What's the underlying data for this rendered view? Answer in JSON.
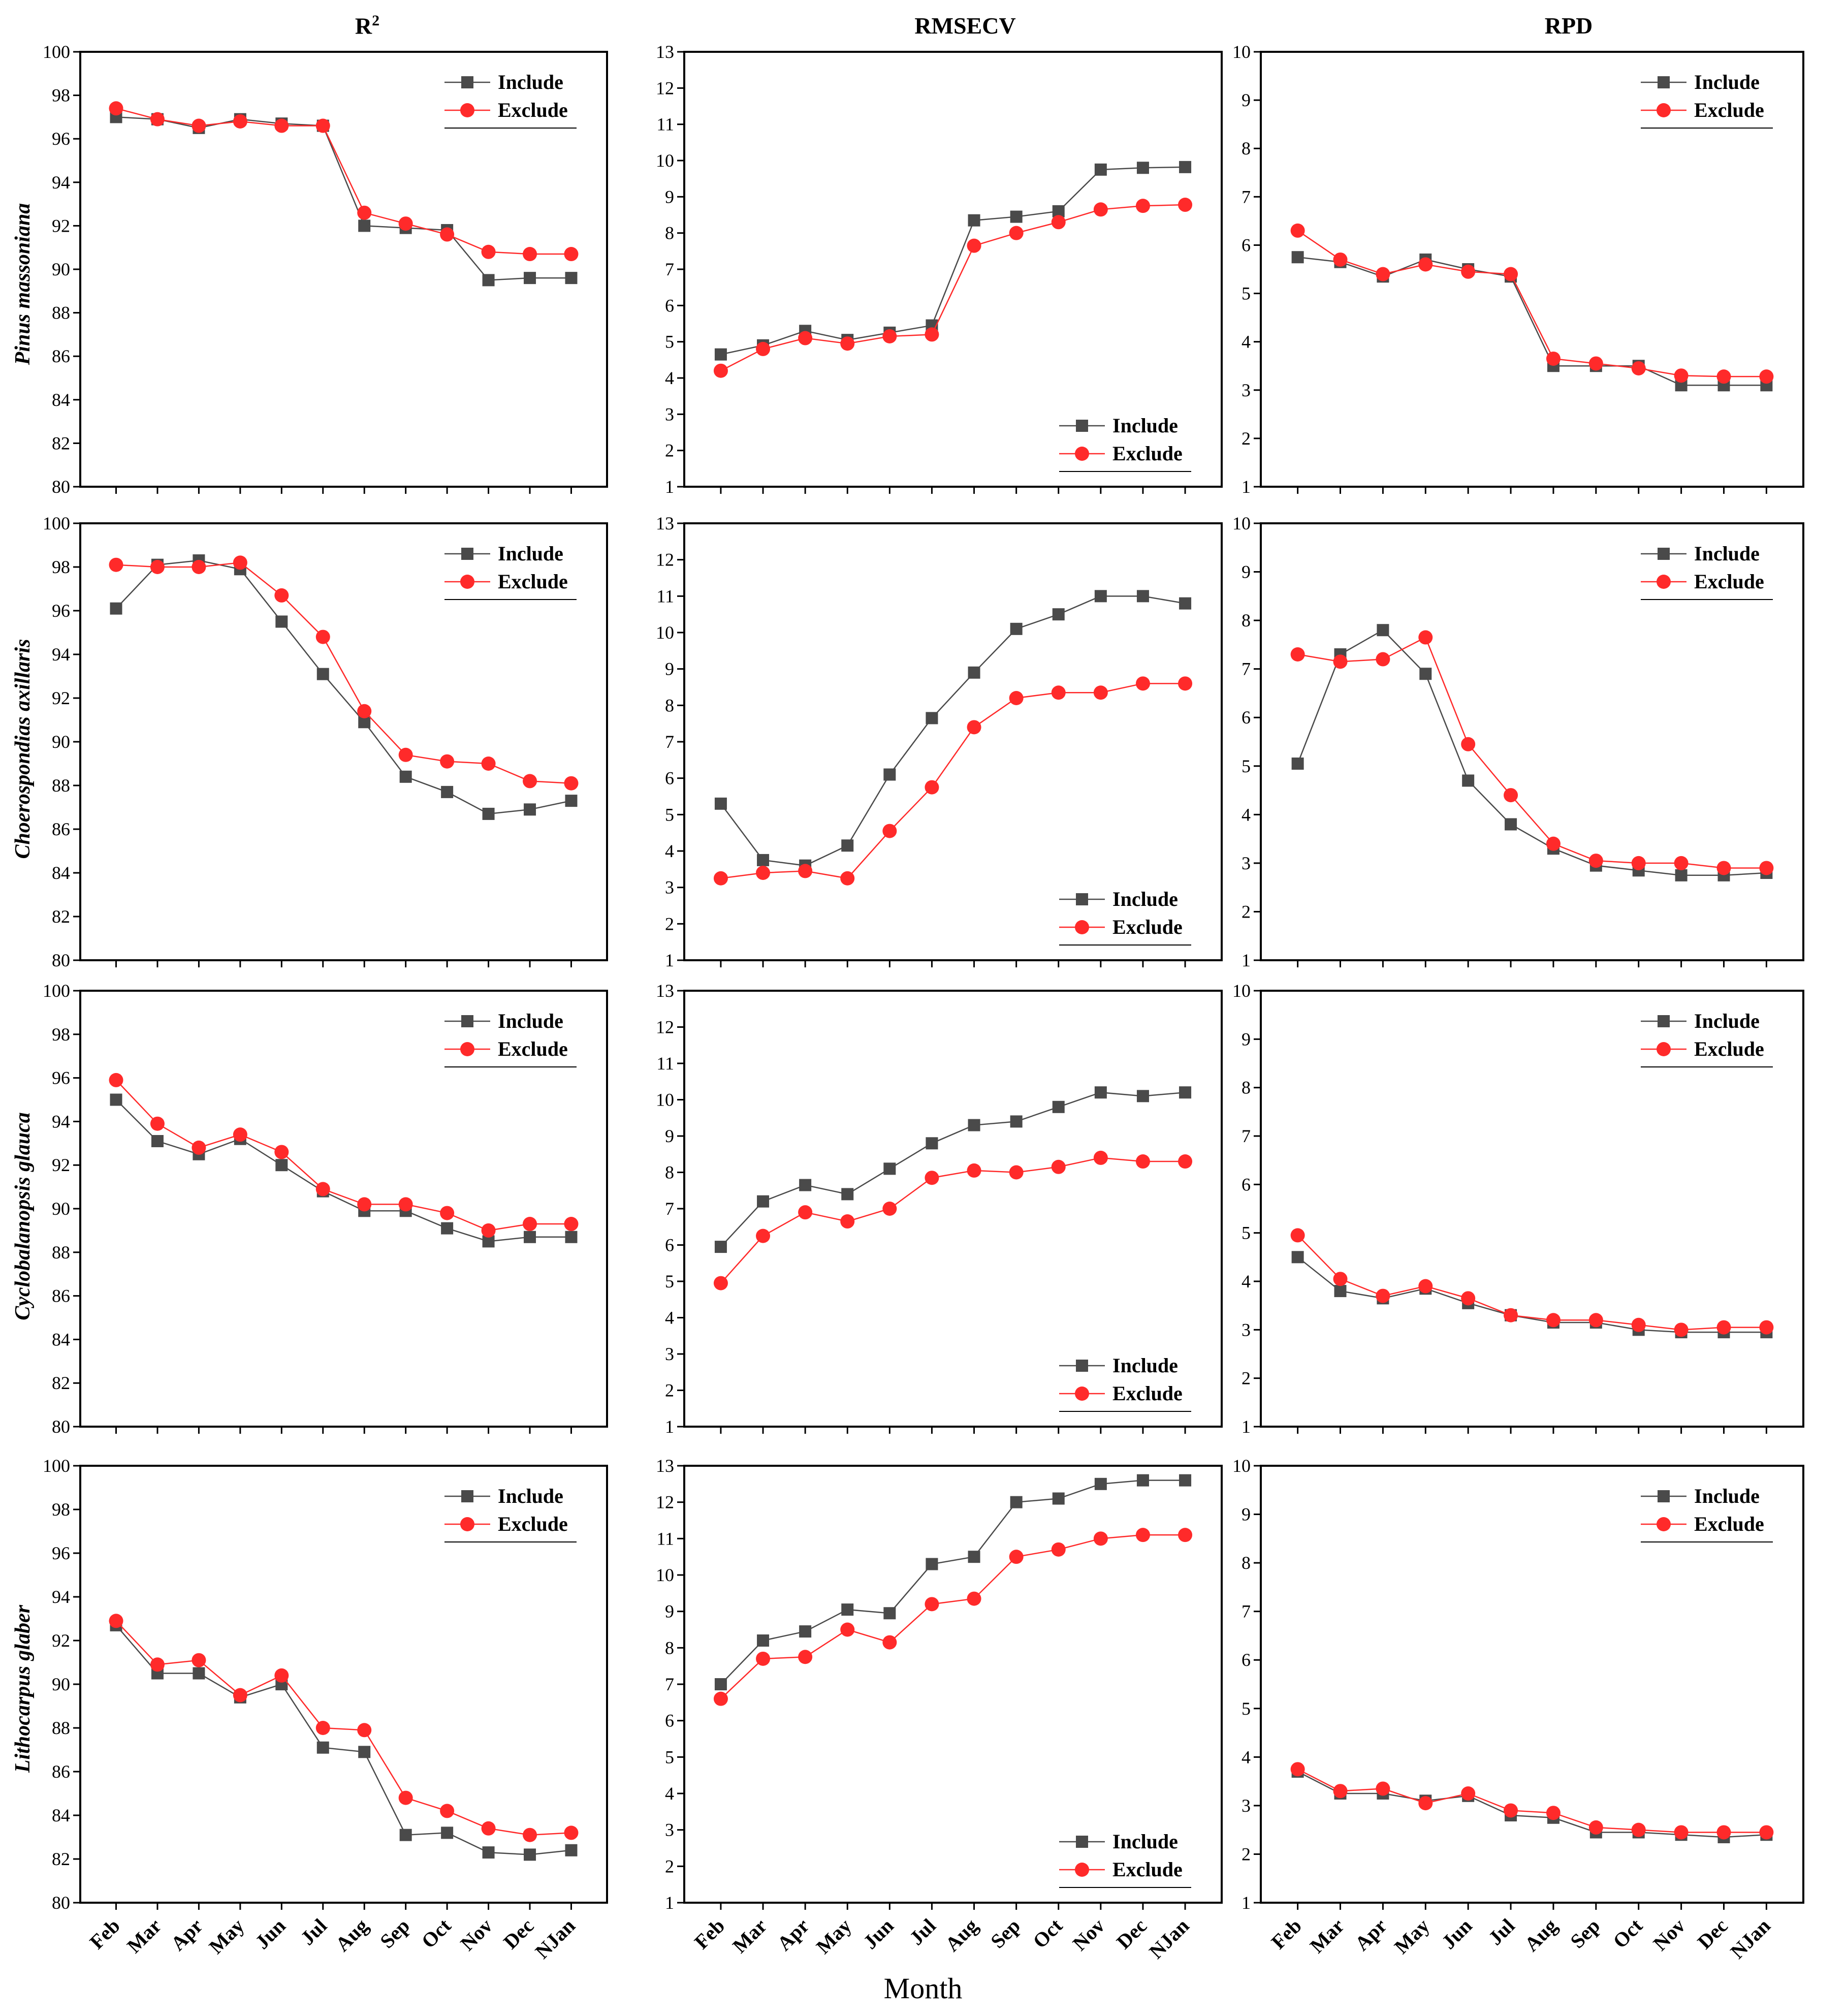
{
  "figure": {
    "column_titles": [
      "R²",
      "RMSECV",
      "RPD"
    ],
    "row_labels": [
      "Pinus massoniana",
      "Choerospondias axillaris",
      "Cyclobalanopsis glauca",
      "Lithocarpus glaber"
    ],
    "x_axis_title": "Month",
    "legend": {
      "include": "Include",
      "exclude": "Exclude"
    },
    "colors": {
      "include": "#4a4a4a",
      "exclude": "#ff2a2a"
    }
  },
  "chart_data": [
    {
      "type": "line",
      "metric": "R2",
      "species": "Pinus massoniana",
      "categories": [
        "Feb",
        "Mar",
        "Apr",
        "May",
        "Jun",
        "Jul",
        "Aug",
        "Sep",
        "Oct",
        "Nov",
        "Dec",
        "NJan"
      ],
      "ylim": [
        80,
        100
      ],
      "yticks": [
        80,
        82,
        84,
        86,
        88,
        90,
        92,
        94,
        96,
        98,
        100
      ],
      "legend_position": "top-right",
      "series": [
        {
          "name": "Include",
          "values": [
            97.0,
            96.9,
            96.5,
            96.9,
            96.7,
            96.6,
            92.0,
            91.9,
            91.8,
            89.5,
            89.6,
            89.6
          ]
        },
        {
          "name": "Exclude",
          "values": [
            97.4,
            96.9,
            96.6,
            96.8,
            96.6,
            96.6,
            92.6,
            92.1,
            91.6,
            90.8,
            90.7,
            90.7
          ]
        }
      ]
    },
    {
      "type": "line",
      "metric": "RMSECV",
      "species": "Pinus massoniana",
      "categories": [
        "Feb",
        "Mar",
        "Apr",
        "May",
        "Jun",
        "Jul",
        "Aug",
        "Sep",
        "Oct",
        "Nov",
        "Dec",
        "NJan"
      ],
      "ylim": [
        1,
        13
      ],
      "yticks": [
        1,
        2,
        3,
        4,
        5,
        6,
        7,
        8,
        9,
        10,
        11,
        12,
        13
      ],
      "legend_position": "bottom-right",
      "series": [
        {
          "name": "Include",
          "values": [
            4.65,
            4.9,
            5.3,
            5.05,
            5.25,
            5.45,
            8.35,
            8.45,
            8.6,
            9.75,
            9.8,
            9.82
          ]
        },
        {
          "name": "Exclude",
          "values": [
            4.2,
            4.8,
            5.1,
            4.95,
            5.15,
            5.2,
            7.65,
            8.0,
            8.3,
            8.65,
            8.75,
            8.78
          ]
        }
      ]
    },
    {
      "type": "line",
      "metric": "RPD",
      "species": "Pinus massoniana",
      "categories": [
        "Feb",
        "Mar",
        "Apr",
        "May",
        "Jun",
        "Jul",
        "Aug",
        "Sep",
        "Oct",
        "Nov",
        "Dec",
        "NJan"
      ],
      "ylim": [
        1,
        10
      ],
      "yticks": [
        1,
        2,
        3,
        4,
        5,
        6,
        7,
        8,
        9,
        10
      ],
      "legend_position": "top-right",
      "series": [
        {
          "name": "Include",
          "values": [
            5.75,
            5.65,
            5.35,
            5.7,
            5.5,
            5.35,
            3.5,
            3.5,
            3.5,
            3.1,
            3.1,
            3.1
          ]
        },
        {
          "name": "Exclude",
          "values": [
            6.3,
            5.7,
            5.4,
            5.6,
            5.45,
            5.4,
            3.65,
            3.55,
            3.45,
            3.3,
            3.28,
            3.28
          ]
        }
      ]
    },
    {
      "type": "line",
      "metric": "R2",
      "species": "Choerospondias axillaris",
      "categories": [
        "Feb",
        "Mar",
        "Apr",
        "May",
        "Jun",
        "Jul",
        "Aug",
        "Sep",
        "Oct",
        "Nov",
        "Dec",
        "NJan"
      ],
      "ylim": [
        80,
        100
      ],
      "yticks": [
        80,
        82,
        84,
        86,
        88,
        90,
        92,
        94,
        96,
        98,
        100
      ],
      "legend_position": "top-right",
      "series": [
        {
          "name": "Include",
          "values": [
            96.1,
            98.1,
            98.3,
            97.9,
            95.5,
            93.1,
            90.9,
            88.4,
            87.7,
            86.7,
            86.9,
            87.3
          ]
        },
        {
          "name": "Exclude",
          "values": [
            98.1,
            98.0,
            98.0,
            98.2,
            96.7,
            94.8,
            91.4,
            89.4,
            89.1,
            89.0,
            88.2,
            88.1
          ]
        }
      ]
    },
    {
      "type": "line",
      "metric": "RMSECV",
      "species": "Choerospondias axillaris",
      "categories": [
        "Feb",
        "Mar",
        "Apr",
        "May",
        "Jun",
        "Jul",
        "Aug",
        "Sep",
        "Oct",
        "Nov",
        "Dec",
        "NJan"
      ],
      "ylim": [
        1,
        13
      ],
      "yticks": [
        1,
        2,
        3,
        4,
        5,
        6,
        7,
        8,
        9,
        10,
        11,
        12,
        13
      ],
      "legend_position": "bottom-right",
      "series": [
        {
          "name": "Include",
          "values": [
            5.3,
            3.75,
            3.6,
            4.15,
            6.1,
            7.65,
            8.9,
            10.1,
            10.5,
            11.0,
            11.0,
            10.8
          ]
        },
        {
          "name": "Exclude",
          "values": [
            3.25,
            3.4,
            3.45,
            3.25,
            4.55,
            5.75,
            7.4,
            8.2,
            8.35,
            8.35,
            8.6,
            8.6
          ]
        }
      ]
    },
    {
      "type": "line",
      "metric": "RPD",
      "species": "Choerospondias axillaris",
      "categories": [
        "Feb",
        "Mar",
        "Apr",
        "May",
        "Jun",
        "Jul",
        "Aug",
        "Sep",
        "Oct",
        "Nov",
        "Dec",
        "NJan"
      ],
      "ylim": [
        1,
        10
      ],
      "yticks": [
        1,
        2,
        3,
        4,
        5,
        6,
        7,
        8,
        9,
        10
      ],
      "legend_position": "top-right",
      "series": [
        {
          "name": "Include",
          "values": [
            5.05,
            7.3,
            7.8,
            6.9,
            4.7,
            3.8,
            3.3,
            2.95,
            2.85,
            2.75,
            2.75,
            2.8
          ]
        },
        {
          "name": "Exclude",
          "values": [
            7.3,
            7.15,
            7.2,
            7.65,
            5.45,
            4.4,
            3.4,
            3.05,
            3.0,
            3.0,
            2.9,
            2.9
          ]
        }
      ]
    },
    {
      "type": "line",
      "metric": "R2",
      "species": "Cyclobalanopsis glauca",
      "categories": [
        "Feb",
        "Mar",
        "Apr",
        "May",
        "Jun",
        "Jul",
        "Aug",
        "Sep",
        "Oct",
        "Nov",
        "Dec",
        "NJan"
      ],
      "ylim": [
        80,
        100
      ],
      "yticks": [
        80,
        82,
        84,
        86,
        88,
        90,
        92,
        94,
        96,
        98,
        100
      ],
      "legend_position": "top-right",
      "series": [
        {
          "name": "Include",
          "values": [
            95.0,
            93.1,
            92.5,
            93.2,
            92.0,
            90.8,
            89.9,
            89.9,
            89.1,
            88.5,
            88.7,
            88.7
          ]
        },
        {
          "name": "Exclude",
          "values": [
            95.9,
            93.9,
            92.8,
            93.4,
            92.6,
            90.9,
            90.2,
            90.2,
            89.8,
            89.0,
            89.3,
            89.3
          ]
        }
      ]
    },
    {
      "type": "line",
      "metric": "RMSECV",
      "species": "Cyclobalanopsis glauca",
      "categories": [
        "Feb",
        "Mar",
        "Apr",
        "May",
        "Jun",
        "Jul",
        "Aug",
        "Sep",
        "Oct",
        "Nov",
        "Dec",
        "NJan"
      ],
      "ylim": [
        1,
        13
      ],
      "yticks": [
        1,
        2,
        3,
        4,
        5,
        6,
        7,
        8,
        9,
        10,
        11,
        12,
        13
      ],
      "legend_position": "bottom-right",
      "series": [
        {
          "name": "Include",
          "values": [
            5.95,
            7.2,
            7.65,
            7.4,
            8.1,
            8.8,
            9.3,
            9.4,
            9.8,
            10.2,
            10.1,
            10.2
          ]
        },
        {
          "name": "Exclude",
          "values": [
            4.95,
            6.25,
            6.9,
            6.65,
            7.0,
            7.85,
            8.05,
            8.0,
            8.15,
            8.4,
            8.3,
            8.3
          ]
        }
      ]
    },
    {
      "type": "line",
      "metric": "RPD",
      "species": "Cyclobalanopsis glauca",
      "categories": [
        "Feb",
        "Mar",
        "Apr",
        "May",
        "Jun",
        "Jul",
        "Aug",
        "Sep",
        "Oct",
        "Nov",
        "Dec",
        "NJan"
      ],
      "ylim": [
        1,
        10
      ],
      "yticks": [
        1,
        2,
        3,
        4,
        5,
        6,
        7,
        8,
        9,
        10
      ],
      "legend_position": "top-right",
      "series": [
        {
          "name": "Include",
          "values": [
            4.5,
            3.8,
            3.65,
            3.85,
            3.55,
            3.3,
            3.15,
            3.15,
            3.0,
            2.95,
            2.95,
            2.95
          ]
        },
        {
          "name": "Exclude",
          "values": [
            4.95,
            4.05,
            3.7,
            3.9,
            3.65,
            3.3,
            3.2,
            3.2,
            3.1,
            3.0,
            3.05,
            3.05
          ]
        }
      ]
    },
    {
      "type": "line",
      "metric": "R2",
      "species": "Lithocarpus glaber",
      "categories": [
        "Feb",
        "Mar",
        "Apr",
        "May",
        "Jun",
        "Jul",
        "Aug",
        "Sep",
        "Oct",
        "Nov",
        "Dec",
        "NJan"
      ],
      "ylim": [
        80,
        100
      ],
      "yticks": [
        80,
        82,
        84,
        86,
        88,
        90,
        92,
        94,
        96,
        98,
        100
      ],
      "legend_position": "top-right",
      "series": [
        {
          "name": "Include",
          "values": [
            92.7,
            90.5,
            90.5,
            89.4,
            90.0,
            87.1,
            86.9,
            83.1,
            83.2,
            82.3,
            82.2,
            82.4
          ]
        },
        {
          "name": "Exclude",
          "values": [
            92.9,
            90.9,
            91.1,
            89.5,
            90.4,
            88.0,
            87.9,
            84.8,
            84.2,
            83.4,
            83.1,
            83.2
          ]
        }
      ]
    },
    {
      "type": "line",
      "metric": "RMSECV",
      "species": "Lithocarpus glaber",
      "categories": [
        "Feb",
        "Mar",
        "Apr",
        "May",
        "Jun",
        "Jul",
        "Aug",
        "Sep",
        "Oct",
        "Nov",
        "Dec",
        "NJan"
      ],
      "ylim": [
        1,
        13
      ],
      "yticks": [
        1,
        2,
        3,
        4,
        5,
        6,
        7,
        8,
        9,
        10,
        11,
        12,
        13
      ],
      "legend_position": "bottom-right",
      "series": [
        {
          "name": "Include",
          "values": [
            7.0,
            8.2,
            8.45,
            9.05,
            8.95,
            10.3,
            10.5,
            12.0,
            12.1,
            12.5,
            12.6,
            12.6
          ]
        },
        {
          "name": "Exclude",
          "values": [
            6.6,
            7.7,
            7.75,
            8.5,
            8.15,
            9.2,
            9.35,
            10.5,
            10.7,
            11.0,
            11.1,
            11.1
          ]
        }
      ]
    },
    {
      "type": "line",
      "metric": "RPD",
      "species": "Lithocarpus glaber",
      "categories": [
        "Feb",
        "Mar",
        "Apr",
        "May",
        "Jun",
        "Jul",
        "Aug",
        "Sep",
        "Oct",
        "Nov",
        "Dec",
        "NJan"
      ],
      "ylim": [
        1,
        10
      ],
      "yticks": [
        1,
        2,
        3,
        4,
        5,
        6,
        7,
        8,
        9,
        10
      ],
      "legend_position": "top-right",
      "series": [
        {
          "name": "Include",
          "values": [
            3.7,
            3.25,
            3.25,
            3.1,
            3.2,
            2.8,
            2.75,
            2.45,
            2.45,
            2.4,
            2.35,
            2.4
          ]
        },
        {
          "name": "Exclude",
          "values": [
            3.75,
            3.3,
            3.35,
            3.05,
            3.25,
            2.9,
            2.85,
            2.55,
            2.5,
            2.45,
            2.45,
            2.45
          ]
        }
      ]
    }
  ]
}
